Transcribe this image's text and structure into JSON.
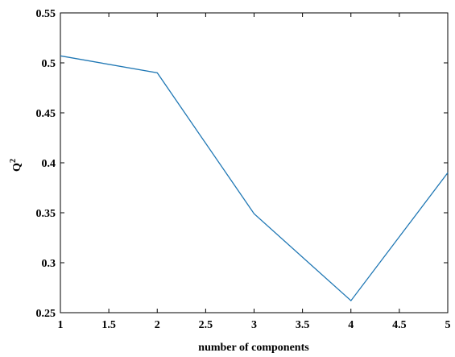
{
  "chart_data": {
    "type": "line",
    "title": "",
    "xlabel": "number of components",
    "ylabel": "Q",
    "ylabel_superscript": "2",
    "xlim": [
      1,
      5
    ],
    "ylim": [
      0.25,
      0.55
    ],
    "xticks": [
      "1",
      "1.5",
      "2",
      "2.5",
      "3",
      "3.5",
      "4",
      "4.5",
      "5"
    ],
    "yticks": [
      "0.25",
      "0.3",
      "0.35",
      "0.4",
      "0.45",
      "0.5",
      "0.55"
    ],
    "grid": false,
    "series": [
      {
        "color": "#1f77b4",
        "x": [
          1,
          2,
          3,
          4,
          5
        ],
        "y": [
          0.507,
          0.49,
          0.349,
          0.262,
          0.39
        ]
      }
    ]
  }
}
